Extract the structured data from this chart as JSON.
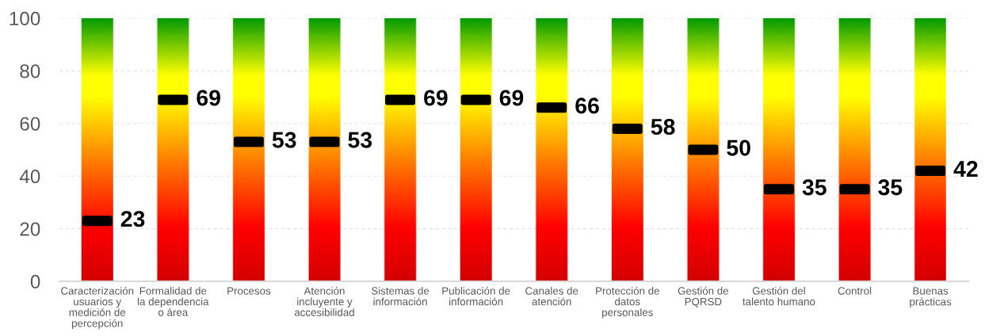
{
  "chart_data": {
    "type": "scatter",
    "categories": [
      "Caracterización\nusuarios y\nmedición de\npercepción",
      "Formalidad de\nla dependencia\no área",
      "Procesos",
      "Atención\nincluyente y\naccesibilidad",
      "Sistemas de\ninformación",
      "Publicación de\ninformación",
      "Canales de\natención",
      "Protección de\ndatos\npersonales",
      "Gestión de\nPQRSD",
      "Gestión del\ntalento humano",
      "Control",
      "Buenas\nprácticas"
    ],
    "values": [
      23,
      69,
      53,
      53,
      69,
      69,
      66,
      58,
      50,
      35,
      35,
      42
    ],
    "color": "#000000",
    "ylim": [
      0,
      100
    ],
    "yticks": [
      0,
      20,
      40,
      60,
      80,
      100
    ],
    "grid": "y",
    "data_labels": true
  }
}
